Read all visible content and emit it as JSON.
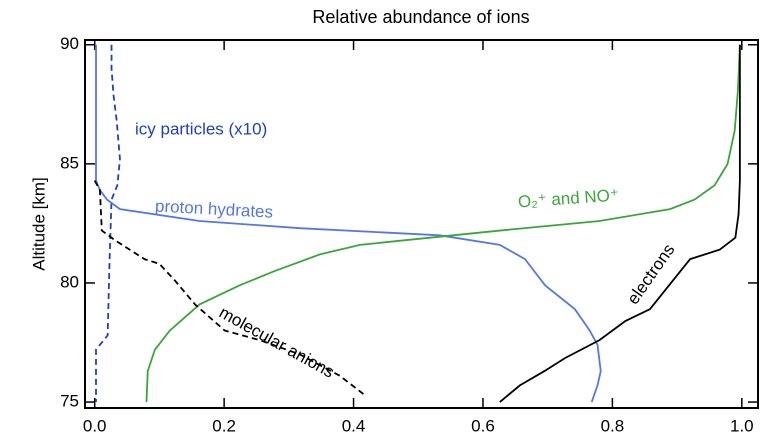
{
  "chart_data": {
    "type": "line",
    "title": "Relative abundance of ions",
    "y_label": "Altitude [km]",
    "xlim": [
      -0.015,
      1.025
    ],
    "ylim": [
      74.75,
      90.2
    ],
    "xticks": [
      {
        "value": 0,
        "label": "0.0"
      },
      0.2,
      0.4,
      0.6,
      0.8,
      {
        "value": 1,
        "label": "1.0"
      }
    ],
    "yticks": [
      75,
      80,
      85,
      90
    ],
    "series": [
      {
        "name": "icy particles (x10)",
        "color": "#1f3fbf",
        "dashed": true,
        "x": [
          0.026,
          0.026,
          0.029,
          0.034,
          0.039,
          0.035,
          0.026,
          0.023,
          0.02,
          0.008,
          0.002,
          0.002
        ],
        "y": [
          90,
          89,
          87.9,
          86.8,
          85.2,
          84.1,
          83.5,
          81,
          77.8,
          77.4,
          77.2,
          75
        ]
      },
      {
        "name": "proton hydrates",
        "color": "#5577e6",
        "dashed": false,
        "x": [
          0.002,
          0.002,
          0.008,
          0.019,
          0.039,
          0.162,
          0.317,
          0.533,
          0.626,
          0.665,
          0.696,
          0.742,
          0.765,
          0.777,
          0.782,
          0.777,
          0.768
        ],
        "y": [
          90,
          84.3,
          83.9,
          83.5,
          83.1,
          82.6,
          82.3,
          82,
          81.6,
          81,
          79.9,
          78.9,
          78,
          77.4,
          76.3,
          75.7,
          75
        ]
      },
      {
        "name": "O₂⁺ and NO⁺",
        "color": "#3aa63a",
        "dashed": false,
        "x": [
          0.08,
          0.082,
          0.093,
          0.116,
          0.162,
          0.224,
          0.278,
          0.348,
          0.41,
          0.518,
          0.626,
          0.78,
          0.889,
          0.927,
          0.958,
          0.978,
          0.989,
          0.994,
          0.997
        ],
        "y": [
          75,
          76.3,
          77.2,
          78,
          79.1,
          79.9,
          80.5,
          81.2,
          81.6,
          81.9,
          82.2,
          82.6,
          83.1,
          83.5,
          84.1,
          85,
          86.4,
          88.1,
          90
        ]
      },
      {
        "name": "molecular anions",
        "color": "#000000",
        "dashed": true,
        "x": [
          0,
          0.008,
          0.011,
          0.031,
          0.054,
          0.077,
          0.1,
          0.124,
          0.155,
          0.201,
          0.255,
          0.317,
          0.379,
          0.417
        ],
        "y": [
          84.3,
          83.9,
          82.2,
          81.8,
          81.4,
          81,
          80.8,
          80.1,
          79.1,
          78,
          77.6,
          77,
          76.1,
          75.3
        ]
      },
      {
        "name": "electrons",
        "color": "#000000",
        "dashed": false,
        "x": [
          0.626,
          0.657,
          0.695,
          0.727,
          0.78,
          0.82,
          0.858,
          0.92,
          0.966,
          0.99,
          0.995,
          0.997,
          0.997
        ],
        "y": [
          75,
          75.7,
          76.3,
          76.85,
          77.6,
          78.4,
          78.9,
          81,
          81.4,
          81.9,
          82.9,
          84.3,
          90
        ]
      }
    ]
  }
}
